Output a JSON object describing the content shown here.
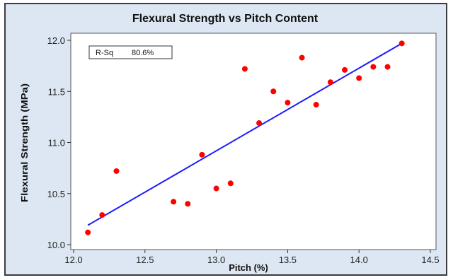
{
  "chart_data": {
    "type": "scatter",
    "title": "Flexural Strength vs Pitch Content",
    "xlabel": "Pitch (%)",
    "ylabel": "Flexural Strength (MPa)",
    "xlim": [
      12.0,
      14.5
    ],
    "ylim": [
      10.0,
      12.0
    ],
    "x_ticks": [
      "12.0",
      "12.5",
      "13.0",
      "13.5",
      "14.0",
      "14.5"
    ],
    "y_ticks": [
      "10.0",
      "10.5",
      "11.0",
      "11.5",
      "12.0"
    ],
    "grid": false,
    "points": [
      {
        "x": 12.1,
        "y": 10.12
      },
      {
        "x": 12.2,
        "y": 10.29
      },
      {
        "x": 12.3,
        "y": 10.72
      },
      {
        "x": 12.7,
        "y": 10.42
      },
      {
        "x": 12.8,
        "y": 10.4
      },
      {
        "x": 12.9,
        "y": 10.88
      },
      {
        "x": 13.0,
        "y": 10.55
      },
      {
        "x": 13.1,
        "y": 10.6
      },
      {
        "x": 13.2,
        "y": 11.72
      },
      {
        "x": 13.3,
        "y": 11.19
      },
      {
        "x": 13.4,
        "y": 11.5
      },
      {
        "x": 13.5,
        "y": 11.39
      },
      {
        "x": 13.6,
        "y": 11.83
      },
      {
        "x": 13.7,
        "y": 11.37
      },
      {
        "x": 13.8,
        "y": 11.59
      },
      {
        "x": 13.9,
        "y": 11.71
      },
      {
        "x": 14.0,
        "y": 11.63
      },
      {
        "x": 14.1,
        "y": 11.74
      },
      {
        "x": 14.2,
        "y": 11.74
      },
      {
        "x": 14.3,
        "y": 11.97
      }
    ],
    "fit_line": {
      "x": [
        12.1,
        14.3
      ],
      "y": [
        10.19,
        11.97
      ]
    },
    "legend": {
      "label": "R-Sq",
      "value": "80.6%",
      "position": "top-left"
    },
    "colors": {
      "points": "#ff0000",
      "fit_line": "#1a1aff",
      "plot_background": "#ffffff",
      "frame_background": "#dde7f3"
    }
  }
}
